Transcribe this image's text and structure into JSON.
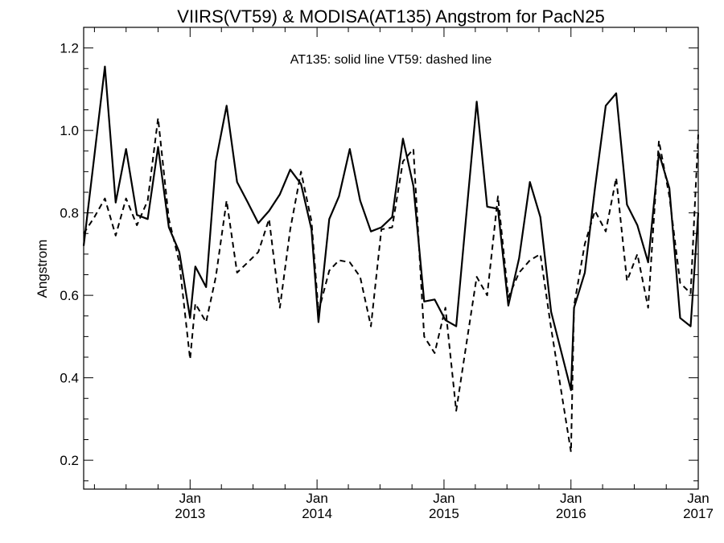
{
  "chart_data": {
    "type": "line",
    "title": "VIIRS(VT59) & MODISA(AT135)  Angstrom for PacN25",
    "annotation": "AT135: solid line   VT59: dashed line",
    "xlabel": "",
    "ylabel": "Angstrom",
    "xlim": [
      "2012-03-01",
      "2017-01-01"
    ],
    "ylim": [
      0.13,
      1.25
    ],
    "yticks": [
      0.2,
      0.4,
      0.6,
      0.8,
      1.0,
      1.2
    ],
    "ytick_labels": [
      "0.2",
      "0.4",
      "0.6",
      "0.8",
      "1.0",
      "1.2"
    ],
    "xticks": [
      {
        "date": "2013-01-01",
        "month": "Jan",
        "year": "2013"
      },
      {
        "date": "2014-01-01",
        "month": "Jan",
        "year": "2014"
      },
      {
        "date": "2015-01-01",
        "month": "Jan",
        "year": "2015"
      },
      {
        "date": "2016-01-01",
        "month": "Jan",
        "year": "2016"
      },
      {
        "date": "2017-01-01",
        "month": "Jan",
        "year": "2017"
      }
    ],
    "minor_ticks_per_year": 12,
    "grid": false,
    "series": [
      {
        "name": "AT135",
        "style": "solid",
        "color": "#000000",
        "points": [
          [
            "2012-03-01",
            0.72
          ],
          [
            "2012-04-01",
            0.94
          ],
          [
            "2012-05-01",
            1.155
          ],
          [
            "2012-06-01",
            0.825
          ],
          [
            "2012-07-01",
            0.955
          ],
          [
            "2012-08-01",
            0.795
          ],
          [
            "2012-09-01",
            0.785
          ],
          [
            "2012-10-01",
            0.96
          ],
          [
            "2012-11-01",
            0.765
          ],
          [
            "2012-12-01",
            0.705
          ],
          [
            "2013-01-01",
            0.545
          ],
          [
            "2013-01-16",
            0.67
          ],
          [
            "2013-02-16",
            0.62
          ],
          [
            "2013-03-16",
            0.925
          ],
          [
            "2013-04-16",
            1.06
          ],
          [
            "2013-05-16",
            0.875
          ],
          [
            "2013-06-16",
            0.825
          ],
          [
            "2013-07-16",
            0.775
          ],
          [
            "2013-08-16",
            0.805
          ],
          [
            "2013-09-16",
            0.845
          ],
          [
            "2013-10-16",
            0.905
          ],
          [
            "2013-11-16",
            0.87
          ],
          [
            "2013-12-16",
            0.76
          ],
          [
            "2014-01-05",
            0.535
          ],
          [
            "2014-02-05",
            0.785
          ],
          [
            "2014-03-05",
            0.84
          ],
          [
            "2014-04-05",
            0.955
          ],
          [
            "2014-05-05",
            0.83
          ],
          [
            "2014-06-05",
            0.755
          ],
          [
            "2014-07-05",
            0.765
          ],
          [
            "2014-08-05",
            0.79
          ],
          [
            "2014-09-05",
            0.98
          ],
          [
            "2014-10-05",
            0.865
          ],
          [
            "2014-11-05",
            0.585
          ],
          [
            "2014-12-05",
            0.59
          ],
          [
            "2015-01-05",
            0.54
          ],
          [
            "2015-02-05",
            0.525
          ],
          [
            "2015-03-05",
            0.785
          ],
          [
            "2015-04-05",
            1.07
          ],
          [
            "2015-05-05",
            0.815
          ],
          [
            "2015-06-05",
            0.81
          ],
          [
            "2015-07-05",
            0.575
          ],
          [
            "2015-08-05",
            0.69
          ],
          [
            "2015-09-05",
            0.875
          ],
          [
            "2015-10-05",
            0.79
          ],
          [
            "2015-11-05",
            0.56
          ],
          [
            "2016-01-01",
            0.37
          ],
          [
            "2016-01-10",
            0.57
          ],
          [
            "2016-02-10",
            0.655
          ],
          [
            "2016-03-10",
            0.86
          ],
          [
            "2016-04-10",
            1.06
          ],
          [
            "2016-05-10",
            1.09
          ],
          [
            "2016-06-10",
            0.82
          ],
          [
            "2016-07-10",
            0.77
          ],
          [
            "2016-08-10",
            0.68
          ],
          [
            "2016-09-10",
            0.945
          ],
          [
            "2016-10-10",
            0.86
          ],
          [
            "2016-11-10",
            0.545
          ],
          [
            "2016-12-10",
            0.525
          ],
          [
            "2017-01-01",
            0.8
          ]
        ]
      },
      {
        "name": "VT59",
        "style": "dashed",
        "color": "#000000",
        "points": [
          [
            "2012-03-01",
            0.75
          ],
          [
            "2012-04-01",
            0.79
          ],
          [
            "2012-05-01",
            0.835
          ],
          [
            "2012-06-01",
            0.745
          ],
          [
            "2012-07-01",
            0.835
          ],
          [
            "2012-08-01",
            0.77
          ],
          [
            "2012-09-01",
            0.83
          ],
          [
            "2012-10-01",
            1.03
          ],
          [
            "2012-11-01",
            0.785
          ],
          [
            "2012-12-01",
            0.68
          ],
          [
            "2013-01-01",
            0.445
          ],
          [
            "2013-01-16",
            0.58
          ],
          [
            "2013-02-16",
            0.535
          ],
          [
            "2013-03-16",
            0.645
          ],
          [
            "2013-04-16",
            0.83
          ],
          [
            "2013-05-16",
            0.655
          ],
          [
            "2013-06-16",
            0.68
          ],
          [
            "2013-07-16",
            0.705
          ],
          [
            "2013-08-16",
            0.785
          ],
          [
            "2013-09-16",
            0.57
          ],
          [
            "2013-10-16",
            0.76
          ],
          [
            "2013-11-16",
            0.9
          ],
          [
            "2013-12-16",
            0.78
          ],
          [
            "2014-01-05",
            0.56
          ],
          [
            "2014-02-05",
            0.66
          ],
          [
            "2014-03-05",
            0.685
          ],
          [
            "2014-04-05",
            0.68
          ],
          [
            "2014-05-05",
            0.645
          ],
          [
            "2014-06-05",
            0.525
          ],
          [
            "2014-07-05",
            0.76
          ],
          [
            "2014-08-05",
            0.765
          ],
          [
            "2014-09-05",
            0.925
          ],
          [
            "2014-10-05",
            0.955
          ],
          [
            "2014-11-05",
            0.5
          ],
          [
            "2014-12-05",
            0.46
          ],
          [
            "2015-01-05",
            0.57
          ],
          [
            "2015-02-05",
            0.32
          ],
          [
            "2015-03-05",
            0.475
          ],
          [
            "2015-04-05",
            0.645
          ],
          [
            "2015-05-05",
            0.6
          ],
          [
            "2015-06-05",
            0.84
          ],
          [
            "2015-07-05",
            0.595
          ],
          [
            "2015-08-05",
            0.655
          ],
          [
            "2015-09-05",
            0.685
          ],
          [
            "2015-10-05",
            0.7
          ],
          [
            "2015-11-05",
            0.52
          ],
          [
            "2016-01-01",
            0.22
          ],
          [
            "2016-01-10",
            0.575
          ],
          [
            "2016-02-10",
            0.725
          ],
          [
            "2016-03-10",
            0.805
          ],
          [
            "2016-04-10",
            0.755
          ],
          [
            "2016-05-10",
            0.885
          ],
          [
            "2016-06-10",
            0.635
          ],
          [
            "2016-07-10",
            0.7
          ],
          [
            "2016-08-10",
            0.57
          ],
          [
            "2016-09-10",
            0.975
          ],
          [
            "2016-10-10",
            0.84
          ],
          [
            "2016-11-10",
            0.63
          ],
          [
            "2016-12-10",
            0.605
          ],
          [
            "2017-01-01",
            0.99
          ]
        ]
      }
    ]
  }
}
